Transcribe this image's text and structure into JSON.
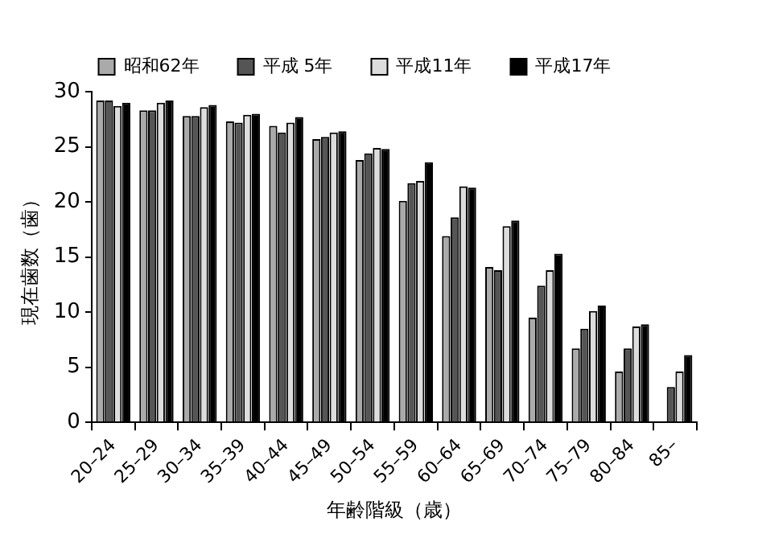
{
  "chart_data": {
    "type": "bar",
    "xlabel": "年齢階級（歳）",
    "ylabel": "現在歯数（歯）",
    "categories": [
      "20–24",
      "25–29",
      "30–34",
      "35–39",
      "40–44",
      "45–49",
      "50–54",
      "55–59",
      "60–64",
      "65–69",
      "70–74",
      "75–79",
      "80–84",
      "85–"
    ],
    "series": [
      {
        "name": "昭和62年",
        "color": "#aaaaaa",
        "values": [
          29.2,
          28.3,
          27.8,
          27.3,
          26.9,
          25.7,
          23.8,
          20.1,
          16.9,
          14.1,
          9.5,
          6.7,
          4.6,
          null
        ]
      },
      {
        "name": "平成 5年",
        "color": "#555555",
        "values": [
          29.2,
          28.3,
          27.8,
          27.2,
          26.3,
          25.9,
          24.4,
          21.7,
          18.6,
          13.8,
          12.4,
          8.5,
          6.7,
          3.2
        ]
      },
      {
        "name": "平成11年",
        "color": "#dddddd",
        "values": [
          28.7,
          29.0,
          28.6,
          27.9,
          27.2,
          26.3,
          24.9,
          21.9,
          21.4,
          17.8,
          13.8,
          10.1,
          8.7,
          4.6
        ]
      },
      {
        "name": "平成17年",
        "color": "#000000",
        "values": [
          29.0,
          29.2,
          28.8,
          28.0,
          27.7,
          26.4,
          24.8,
          23.6,
          21.3,
          18.3,
          15.3,
          10.6,
          8.9,
          6.1
        ]
      }
    ],
    "ylim": [
      0,
      30
    ],
    "yticks": [
      0,
      5,
      10,
      15,
      20,
      25,
      30
    ],
    "grid": false,
    "legend": "top"
  }
}
